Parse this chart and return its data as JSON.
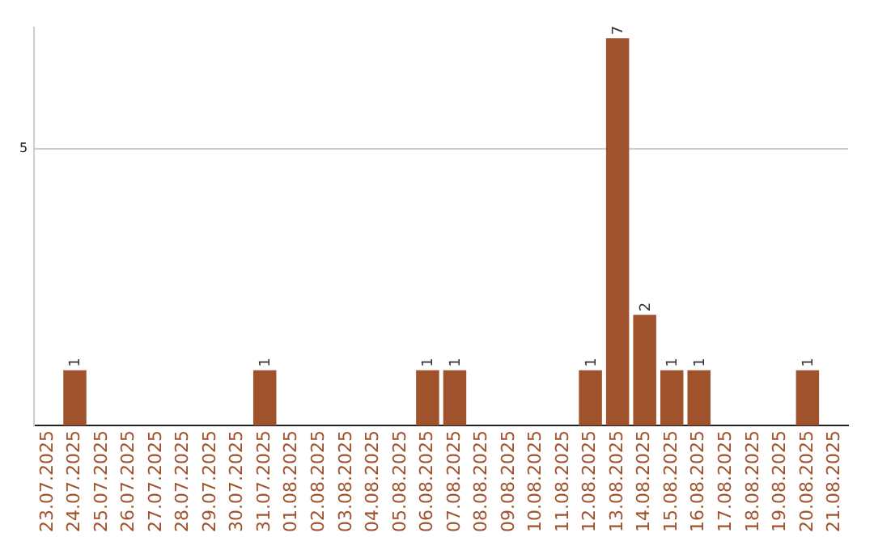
{
  "chart_data": {
    "type": "bar",
    "categories": [
      "23.07.2025",
      "24.07.2025",
      "25.07.2025",
      "26.07.2025",
      "27.07.2025",
      "28.07.2025",
      "29.07.2025",
      "30.07.2025",
      "31.07.2025",
      "01.08.2025",
      "02.08.2025",
      "03.08.2025",
      "04.08.2025",
      "05.08.2025",
      "06.08.2025",
      "07.08.2025",
      "08.08.2025",
      "09.08.2025",
      "10.08.2025",
      "11.08.2025",
      "12.08.2025",
      "13.08.2025",
      "14.08.2025",
      "15.08.2025",
      "16.08.2025",
      "17.08.2025",
      "18.08.2025",
      "19.08.2025",
      "20.08.2025",
      "21.08.2025"
    ],
    "values": [
      0,
      1,
      0,
      0,
      0,
      0,
      0,
      0,
      1,
      0,
      0,
      0,
      0,
      0,
      1,
      1,
      0,
      0,
      0,
      0,
      1,
      7,
      2,
      1,
      1,
      0,
      0,
      0,
      1,
      0
    ],
    "value_labels": [
      null,
      "1",
      null,
      null,
      null,
      null,
      null,
      null,
      "1",
      null,
      null,
      null,
      null,
      null,
      "1",
      "1",
      null,
      null,
      null,
      null,
      "1",
      "7",
      "2",
      "1",
      "1",
      null,
      null,
      null,
      "1",
      null
    ],
    "color": "#a0522d",
    "ylim": [
      0,
      7.2
    ],
    "yticks": [
      5
    ],
    "grid": "y",
    "legend": false
  }
}
